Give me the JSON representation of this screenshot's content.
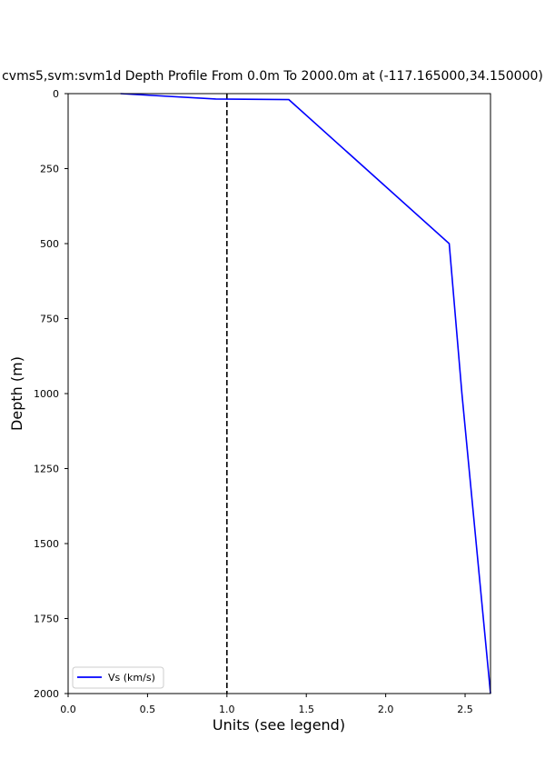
{
  "chart_data": {
    "type": "line",
    "title": "cvms5,svm:svm1d Depth Profile From 0.0m To 2000.0m at (-117.165000,34.150000)",
    "xlabel": "Units (see legend)",
    "ylabel": "Depth (m)",
    "xlim": [
      0,
      2.66
    ],
    "ylim": [
      2000,
      0
    ],
    "y_inverted": true,
    "xticks": [
      "0.0",
      "0.5",
      "1.0",
      "1.5",
      "2.0",
      "2.5"
    ],
    "yticks": [
      "0",
      "250",
      "500",
      "750",
      "1000",
      "1250",
      "1500",
      "1750",
      "2000"
    ],
    "grid": false,
    "legend_position": "bottom-left",
    "series": [
      {
        "name": "Vs (km/s)",
        "color": "#0000ff",
        "x": [
          0.33,
          0.93,
          1.39,
          2.4,
          2.48,
          2.66
        ],
        "y": [
          0,
          18,
          20,
          500,
          1000,
          2000
        ]
      }
    ],
    "reference_line": {
      "x": 1.0,
      "style": "dashed",
      "color": "#000000"
    }
  }
}
